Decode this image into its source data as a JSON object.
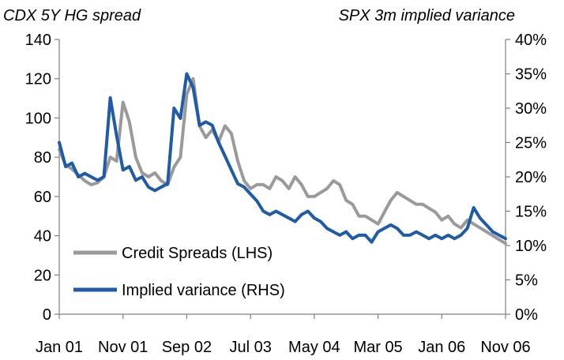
{
  "chart_data": {
    "type": "line",
    "title": "",
    "left_axis_title": "CDX 5Y HG spread",
    "right_axis_title": "SPX 3m implied variance",
    "x_tick_labels": [
      "Jan 01",
      "Nov 01",
      "Sep 02",
      "Jul 03",
      "May 04",
      "Mar 05",
      "Jan 06",
      "Nov 06"
    ],
    "x_range_months": [
      "2001-01",
      "2006-11"
    ],
    "left_axis": {
      "ylim": [
        0,
        140
      ],
      "ticks": [
        "0",
        "20",
        "40",
        "60",
        "80",
        "100",
        "120",
        "140"
      ]
    },
    "right_axis": {
      "ylim": [
        0,
        40
      ],
      "ticks": [
        "0%",
        "5%",
        "10%",
        "15%",
        "20%",
        "25%",
        "30%",
        "35%",
        "40%"
      ]
    },
    "series": [
      {
        "name": "Credit Spreads (LHS)",
        "axis": "left",
        "color": "#9a9a9a",
        "x": [
          "2001-01",
          "2001-02",
          "2001-03",
          "2001-04",
          "2001-05",
          "2001-06",
          "2001-07",
          "2001-08",
          "2001-09",
          "2001-10",
          "2001-11",
          "2001-12",
          "2002-01",
          "2002-02",
          "2002-03",
          "2002-04",
          "2002-05",
          "2002-06",
          "2002-07",
          "2002-08",
          "2002-09",
          "2002-10",
          "2002-11",
          "2002-12",
          "2003-01",
          "2003-02",
          "2003-03",
          "2003-04",
          "2003-05",
          "2003-06",
          "2003-07",
          "2003-08",
          "2003-09",
          "2003-10",
          "2003-11",
          "2003-12",
          "2004-01",
          "2004-02",
          "2004-03",
          "2004-04",
          "2004-05",
          "2004-06",
          "2004-07",
          "2004-08",
          "2004-09",
          "2004-10",
          "2004-11",
          "2004-12",
          "2005-01",
          "2005-02",
          "2005-03",
          "2005-04",
          "2005-05",
          "2005-06",
          "2005-07",
          "2005-08",
          "2005-09",
          "2005-10",
          "2005-11",
          "2005-12",
          "2006-01",
          "2006-02",
          "2006-03",
          "2006-04",
          "2006-05",
          "2006-06",
          "2006-07",
          "2006-08",
          "2006-09",
          "2006-10",
          "2006-11"
        ],
        "values": [
          84,
          76,
          74,
          71,
          68,
          66,
          67,
          70,
          80,
          78,
          108,
          98,
          80,
          72,
          70,
          72,
          68,
          66,
          75,
          80,
          112,
          120,
          96,
          90,
          94,
          88,
          96,
          92,
          78,
          68,
          64,
          66,
          66,
          64,
          70,
          68,
          64,
          70,
          66,
          60,
          60,
          62,
          64,
          68,
          66,
          58,
          56,
          50,
          50,
          48,
          46,
          52,
          58,
          62,
          60,
          58,
          56,
          56,
          54,
          52,
          48,
          50,
          46,
          44,
          48,
          46,
          44,
          42,
          40,
          38,
          36
        ]
      },
      {
        "name": "Implied variance (RHS)",
        "axis": "right",
        "color": "#1f5ba6",
        "x": [
          "2001-01",
          "2001-02",
          "2001-03",
          "2001-04",
          "2001-05",
          "2001-06",
          "2001-07",
          "2001-08",
          "2001-09",
          "2001-10",
          "2001-11",
          "2001-12",
          "2002-01",
          "2002-02",
          "2002-03",
          "2002-04",
          "2002-05",
          "2002-06",
          "2002-07",
          "2002-08",
          "2002-09",
          "2002-10",
          "2002-11",
          "2002-12",
          "2003-01",
          "2003-02",
          "2003-03",
          "2003-04",
          "2003-05",
          "2003-06",
          "2003-07",
          "2003-08",
          "2003-09",
          "2003-10",
          "2003-11",
          "2003-12",
          "2004-01",
          "2004-02",
          "2004-03",
          "2004-04",
          "2004-05",
          "2004-06",
          "2004-07",
          "2004-08",
          "2004-09",
          "2004-10",
          "2004-11",
          "2004-12",
          "2005-01",
          "2005-02",
          "2005-03",
          "2005-04",
          "2005-05",
          "2005-06",
          "2005-07",
          "2005-08",
          "2005-09",
          "2005-10",
          "2005-11",
          "2005-12",
          "2006-01",
          "2006-02",
          "2006-03",
          "2006-04",
          "2006-05",
          "2006-06",
          "2006-07",
          "2006-08",
          "2006-09",
          "2006-10",
          "2006-11"
        ],
        "values": [
          25.0,
          21.5,
          22.0,
          20.0,
          20.5,
          20.0,
          19.5,
          20.0,
          31.5,
          26.0,
          21.0,
          21.5,
          19.5,
          20.0,
          18.5,
          18.0,
          18.5,
          19.0,
          30.0,
          28.5,
          35.0,
          33.0,
          27.5,
          28.0,
          27.5,
          25.0,
          23.0,
          21.0,
          19.0,
          18.5,
          17.5,
          16.5,
          15.0,
          14.5,
          15.0,
          14.5,
          14.0,
          13.5,
          14.5,
          15.0,
          14.0,
          13.5,
          12.5,
          12.0,
          11.5,
          12.0,
          11.0,
          11.5,
          11.5,
          10.5,
          12.0,
          12.5,
          13.0,
          12.5,
          11.5,
          11.5,
          12.0,
          11.5,
          11.0,
          11.5,
          11.0,
          11.5,
          11.0,
          11.5,
          12.5,
          15.5,
          14.0,
          13.0,
          12.0,
          11.5,
          11.0
        ]
      }
    ],
    "grid": false,
    "legend": "bottom-left"
  }
}
